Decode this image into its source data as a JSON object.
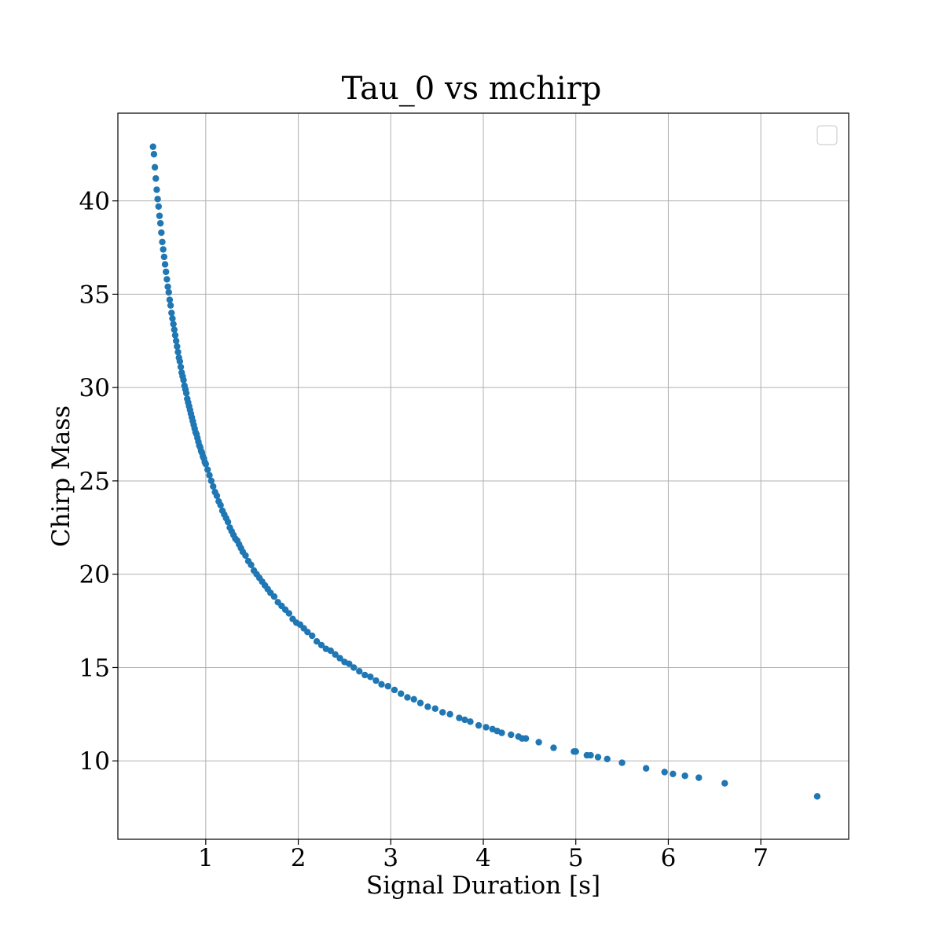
{
  "chart_data": {
    "type": "scatter",
    "title": "Tau_0 vs mchirp",
    "xlabel": "Signal Duration [s]",
    "ylabel": "Chirp Mass",
    "xlim": [
      0.05,
      7.95
    ],
    "ylim": [
      5.8,
      44.7
    ],
    "x_ticks": [
      1,
      2,
      3,
      4,
      5,
      6,
      7
    ],
    "y_ticks": [
      10,
      15,
      20,
      25,
      30,
      35,
      40
    ],
    "x_tick_labels": [
      "1",
      "2",
      "3",
      "4",
      "5",
      "6",
      "7"
    ],
    "y_tick_labels": [
      "10",
      "15",
      "20",
      "25",
      "30",
      "35",
      "40"
    ],
    "grid": true,
    "legend": {
      "placement": "top-right",
      "entries": []
    },
    "series_color": "#1f77b4",
    "relation": "y = 25.9 * x^(-0.623)",
    "points": [
      [
        0.43,
        42.9
      ],
      [
        0.44,
        42.5
      ],
      [
        0.45,
        41.8
      ],
      [
        0.46,
        41.2
      ],
      [
        0.47,
        40.6
      ],
      [
        0.48,
        40.1
      ],
      [
        0.49,
        39.7
      ],
      [
        0.5,
        39.2
      ],
      [
        0.51,
        38.8
      ],
      [
        0.52,
        38.3
      ],
      [
        0.53,
        37.8
      ],
      [
        0.54,
        37.4
      ],
      [
        0.55,
        37.0
      ],
      [
        0.56,
        36.6
      ],
      [
        0.57,
        36.2
      ],
      [
        0.58,
        35.8
      ],
      [
        0.59,
        35.4
      ],
      [
        0.6,
        35.1
      ],
      [
        0.61,
        34.7
      ],
      [
        0.62,
        34.4
      ],
      [
        0.63,
        34.0
      ],
      [
        0.64,
        33.7
      ],
      [
        0.65,
        33.4
      ],
      [
        0.66,
        33.1
      ],
      [
        0.67,
        32.8
      ],
      [
        0.68,
        32.5
      ],
      [
        0.69,
        32.2
      ],
      [
        0.7,
        31.9
      ],
      [
        0.71,
        31.6
      ],
      [
        0.72,
        31.4
      ],
      [
        0.73,
        31.1
      ],
      [
        0.74,
        30.8
      ],
      [
        0.75,
        30.6
      ],
      [
        0.76,
        30.4
      ],
      [
        0.77,
        30.1
      ],
      [
        0.78,
        29.9
      ],
      [
        0.79,
        29.7
      ],
      [
        0.8,
        29.4
      ],
      [
        0.81,
        29.2
      ],
      [
        0.82,
        29.0
      ],
      [
        0.83,
        28.8
      ],
      [
        0.84,
        28.6
      ],
      [
        0.85,
        28.4
      ],
      [
        0.86,
        28.2
      ],
      [
        0.87,
        28.0
      ],
      [
        0.88,
        27.8
      ],
      [
        0.89,
        27.6
      ],
      [
        0.9,
        27.5
      ],
      [
        0.91,
        27.3
      ],
      [
        0.92,
        27.1
      ],
      [
        0.93,
        26.9
      ],
      [
        0.94,
        26.8
      ],
      [
        0.95,
        26.6
      ],
      [
        0.96,
        26.5
      ],
      [
        0.97,
        26.3
      ],
      [
        0.98,
        26.2
      ],
      [
        0.99,
        26.0
      ],
      [
        1.0,
        25.9
      ],
      [
        1.02,
        25.6
      ],
      [
        1.04,
        25.3
      ],
      [
        1.06,
        25.0
      ],
      [
        1.08,
        24.7
      ],
      [
        1.1,
        24.4
      ],
      [
        1.12,
        24.2
      ],
      [
        1.14,
        23.9
      ],
      [
        1.16,
        23.7
      ],
      [
        1.18,
        23.4
      ],
      [
        1.2,
        23.2
      ],
      [
        1.22,
        23.0
      ],
      [
        1.24,
        22.8
      ],
      [
        1.26,
        22.5
      ],
      [
        1.28,
        22.3
      ],
      [
        1.3,
        22.1
      ],
      [
        1.32,
        21.9
      ],
      [
        1.34,
        21.8
      ],
      [
        1.36,
        21.6
      ],
      [
        1.38,
        21.4
      ],
      [
        1.4,
        21.2
      ],
      [
        1.43,
        21.0
      ],
      [
        1.46,
        20.7
      ],
      [
        1.49,
        20.5
      ],
      [
        1.52,
        20.2
      ],
      [
        1.55,
        20.0
      ],
      [
        1.58,
        19.8
      ],
      [
        1.61,
        19.6
      ],
      [
        1.64,
        19.4
      ],
      [
        1.67,
        19.2
      ],
      [
        1.7,
        19.0
      ],
      [
        1.74,
        18.8
      ],
      [
        1.78,
        18.5
      ],
      [
        1.82,
        18.3
      ],
      [
        1.86,
        18.1
      ],
      [
        1.9,
        17.9
      ],
      [
        1.94,
        17.6
      ],
      [
        1.98,
        17.4
      ],
      [
        2.02,
        17.3
      ],
      [
        2.06,
        17.1
      ],
      [
        2.1,
        16.9
      ],
      [
        2.15,
        16.7
      ],
      [
        2.2,
        16.4
      ],
      [
        2.25,
        16.2
      ],
      [
        2.3,
        16.0
      ],
      [
        2.35,
        15.9
      ],
      [
        2.4,
        15.7
      ],
      [
        2.45,
        15.5
      ],
      [
        2.5,
        15.3
      ],
      [
        2.55,
        15.2
      ],
      [
        2.6,
        15.0
      ],
      [
        2.66,
        14.8
      ],
      [
        2.72,
        14.6
      ],
      [
        2.78,
        14.5
      ],
      [
        2.84,
        14.3
      ],
      [
        2.9,
        14.1
      ],
      [
        2.97,
        14.0
      ],
      [
        3.04,
        13.8
      ],
      [
        3.11,
        13.6
      ],
      [
        3.18,
        13.4
      ],
      [
        3.25,
        13.3
      ],
      [
        3.32,
        13.1
      ],
      [
        3.4,
        12.9
      ],
      [
        3.48,
        12.8
      ],
      [
        3.56,
        12.6
      ],
      [
        3.64,
        12.5
      ],
      [
        3.74,
        12.3
      ],
      [
        3.8,
        12.2
      ],
      [
        3.86,
        12.1
      ],
      [
        3.95,
        11.9
      ],
      [
        4.03,
        11.8
      ],
      [
        4.1,
        11.7
      ],
      [
        4.15,
        11.6
      ],
      [
        4.2,
        11.5
      ],
      [
        4.3,
        11.4
      ],
      [
        4.38,
        11.3
      ],
      [
        4.42,
        11.2
      ],
      [
        4.46,
        11.2
      ],
      [
        4.6,
        11.0
      ],
      [
        4.76,
        10.7
      ],
      [
        4.98,
        10.5
      ],
      [
        5.0,
        10.5
      ],
      [
        5.12,
        10.3
      ],
      [
        5.16,
        10.3
      ],
      [
        5.24,
        10.2
      ],
      [
        5.34,
        10.1
      ],
      [
        5.5,
        9.9
      ],
      [
        5.76,
        9.6
      ],
      [
        5.96,
        9.4
      ],
      [
        6.05,
        9.3
      ],
      [
        6.18,
        9.2
      ],
      [
        6.33,
        9.1
      ],
      [
        6.61,
        8.8
      ],
      [
        7.61,
        8.1
      ]
    ]
  }
}
